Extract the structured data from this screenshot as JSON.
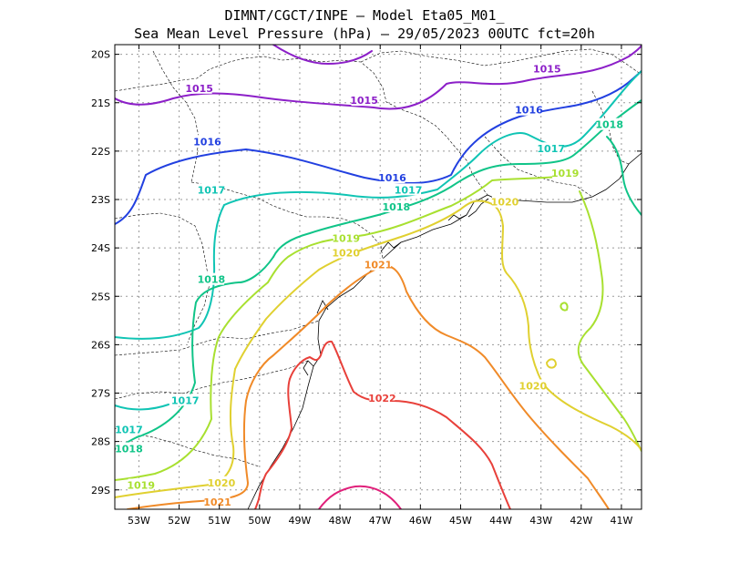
{
  "title": {
    "line1": "DIMNT/CGCT/INPE –  Model Eta05_M01_",
    "line2": "Sea Mean Level Pressure (hPa) – 29/05/2023 00UTC fct=20h"
  },
  "axes": {
    "lon_ticks": [
      {
        "value": -53,
        "label": "53W"
      },
      {
        "value": -52,
        "label": "52W"
      },
      {
        "value": -51,
        "label": "51W"
      },
      {
        "value": -50,
        "label": "50W"
      },
      {
        "value": -49,
        "label": "49W"
      },
      {
        "value": -48,
        "label": "48W"
      },
      {
        "value": -47,
        "label": "47W"
      },
      {
        "value": -46,
        "label": "46W"
      },
      {
        "value": -45,
        "label": "45W"
      },
      {
        "value": -44,
        "label": "44W"
      },
      {
        "value": -43,
        "label": "43W"
      },
      {
        "value": -42,
        "label": "42W"
      },
      {
        "value": -41,
        "label": "41W"
      }
    ],
    "lat_ticks": [
      {
        "value": -20,
        "label": "20S"
      },
      {
        "value": -21,
        "label": "21S"
      },
      {
        "value": -22,
        "label": "22S"
      },
      {
        "value": -23,
        "label": "23S"
      },
      {
        "value": -24,
        "label": "24S"
      },
      {
        "value": -25,
        "label": "25S"
      },
      {
        "value": -26,
        "label": "26S"
      },
      {
        "value": -27,
        "label": "27S"
      },
      {
        "value": -28,
        "label": "28S"
      },
      {
        "value": -29,
        "label": "29S"
      }
    ]
  },
  "contours": [
    {
      "label": "1015",
      "color": "#8c1fc8",
      "labels": [
        [
          -51.5,
          -20.7
        ],
        [
          -47.4,
          -20.95
        ],
        [
          -42.85,
          -20.3
        ]
      ]
    },
    {
      "label": "1016",
      "color": "#2240e0",
      "labels": [
        [
          -51.3,
          -21.8
        ],
        [
          -46.7,
          -22.55
        ],
        [
          -43.3,
          -21.15
        ]
      ]
    },
    {
      "label": "1017",
      "color": "#10c4b4",
      "labels": [
        [
          -51.2,
          -22.8
        ],
        [
          -46.3,
          -22.8
        ],
        [
          -42.75,
          -21.95
        ],
        [
          -51.85,
          -27.15
        ],
        [
          -53.25,
          -27.75
        ]
      ]
    },
    {
      "label": "1018",
      "color": "#10c488",
      "labels": [
        [
          -46.6,
          -23.15
        ],
        [
          -51.2,
          -24.65
        ],
        [
          -41.3,
          -21.45
        ],
        [
          -53.25,
          -28.15
        ]
      ]
    },
    {
      "label": "1019",
      "color": "#a8e030",
      "labels": [
        [
          -47.85,
          -23.8
        ],
        [
          -42.4,
          -22.45
        ],
        [
          -52.95,
          -28.9
        ]
      ]
    },
    {
      "label": "1020",
      "color": "#e0d030",
      "labels": [
        [
          -47.85,
          -24.1
        ],
        [
          -43.9,
          -23.05
        ],
        [
          -43.2,
          -26.85
        ],
        [
          -50.95,
          -28.85
        ]
      ]
    },
    {
      "label": "1021",
      "color": "#f08a28",
      "labels": [
        [
          -47.05,
          -24.35
        ],
        [
          -51.05,
          -29.25
        ]
      ]
    },
    {
      "label": "1022",
      "color": "#e8403a",
      "labels": [
        [
          -46.95,
          -27.1
        ]
      ]
    },
    {
      "label": "1023",
      "color": "#e0207a",
      "labels": []
    }
  ]
}
